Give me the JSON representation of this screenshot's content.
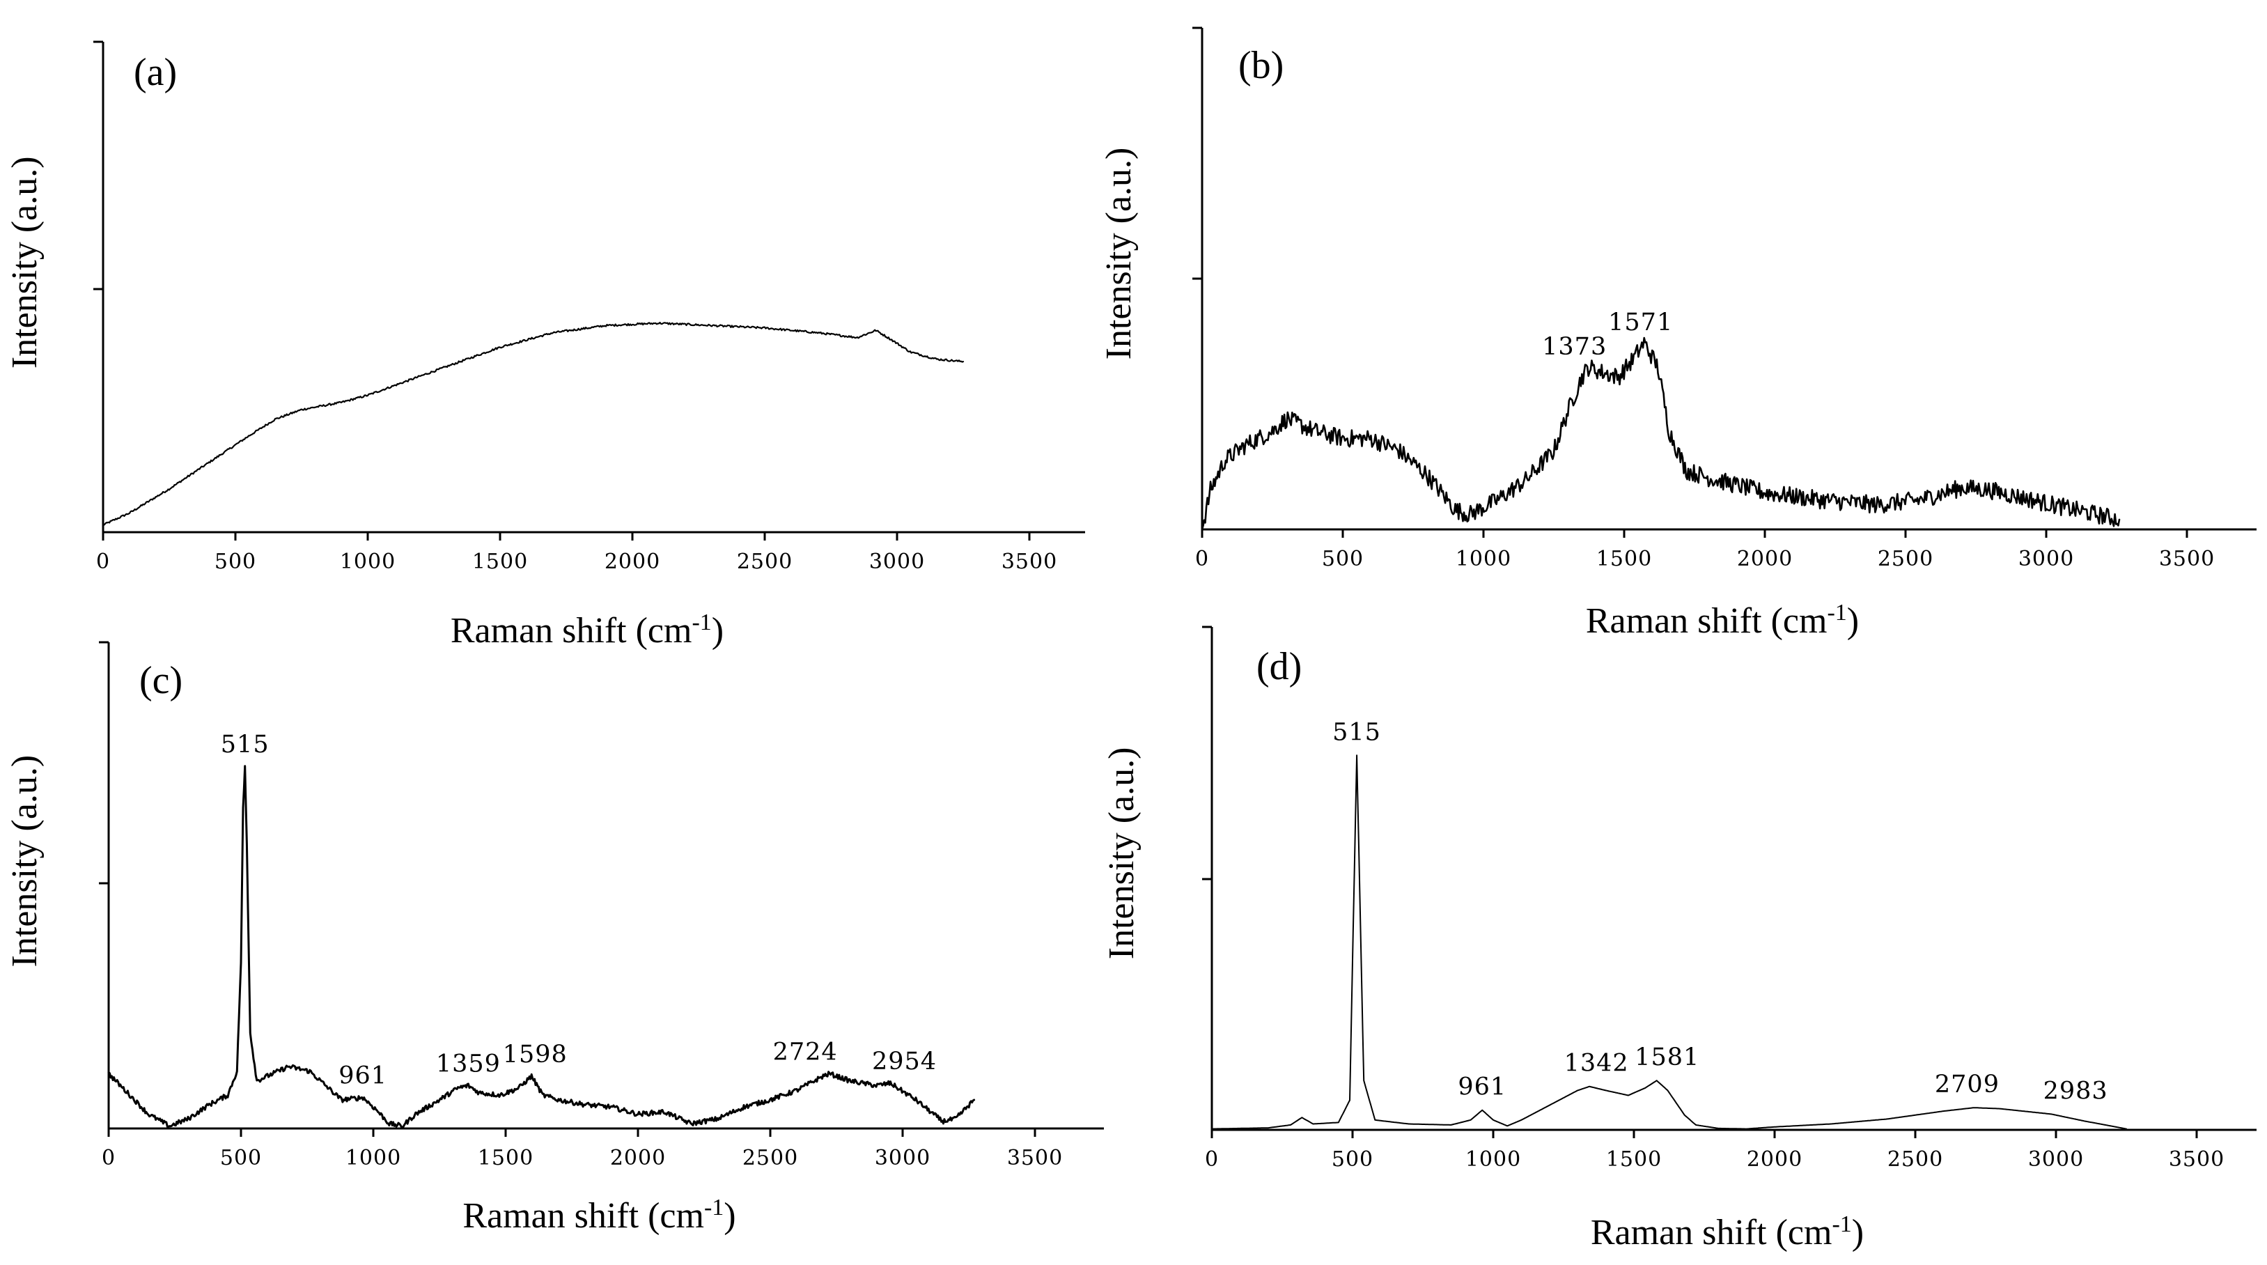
{
  "chart_data": [
    {
      "panel": "(a)",
      "type": "line",
      "title": "",
      "xlabel_main": "Raman shift (cm",
      "xlabel_sup": "-1",
      "xlabel_end": ")",
      "ylabel": "Intensity (a.u.)",
      "xlim": [
        0,
        3750
      ],
      "ylim": [
        0,
        1
      ],
      "xticks": [
        "0",
        "500",
        "1000",
        "1500",
        "2000",
        "2500",
        "3000",
        "3500"
      ],
      "noise": 0.002,
      "series": [
        {
          "name": "(a)",
          "points": [
            [
              0,
              0.015
            ],
            [
              100,
              0.04
            ],
            [
              250,
              0.09
            ],
            [
              400,
              0.145
            ],
            [
              550,
              0.2
            ],
            [
              650,
              0.235
            ],
            [
              750,
              0.255
            ],
            [
              900,
              0.27
            ],
            [
              1000,
              0.285
            ],
            [
              1100,
              0.305
            ],
            [
              1300,
              0.345
            ],
            [
              1500,
              0.385
            ],
            [
              1700,
              0.415
            ],
            [
              1900,
              0.43
            ],
            [
              2100,
              0.435
            ],
            [
              2300,
              0.43
            ],
            [
              2500,
              0.425
            ],
            [
              2700,
              0.415
            ],
            [
              2850,
              0.405
            ],
            [
              2920,
              0.42
            ],
            [
              2980,
              0.4
            ],
            [
              3050,
              0.375
            ],
            [
              3150,
              0.36
            ],
            [
              3250,
              0.355
            ]
          ]
        }
      ],
      "annotations": []
    },
    {
      "panel": "(b)",
      "type": "line",
      "title": "",
      "xlabel_main": "Raman shift (cm",
      "xlabel_sup": "-1",
      "xlabel_end": ")",
      "ylabel": "Intensity (a.u.)",
      "xlim": [
        0,
        3750
      ],
      "ylim": [
        0,
        1
      ],
      "xticks": [
        "0",
        "500",
        "1000",
        "1500",
        "2000",
        "2500",
        "3000",
        "3500"
      ],
      "noise": 0.018,
      "series": [
        {
          "name": "(b)",
          "points": [
            [
              0,
              0.0
            ],
            [
              30,
              0.08
            ],
            [
              80,
              0.14
            ],
            [
              150,
              0.17
            ],
            [
              250,
              0.2
            ],
            [
              300,
              0.225
            ],
            [
              400,
              0.2
            ],
            [
              500,
              0.185
            ],
            [
              600,
              0.185
            ],
            [
              700,
              0.16
            ],
            [
              800,
              0.11
            ],
            [
              900,
              0.04
            ],
            [
              950,
              0.03
            ],
            [
              1050,
              0.06
            ],
            [
              1150,
              0.1
            ],
            [
              1250,
              0.16
            ],
            [
              1300,
              0.24
            ],
            [
              1350,
              0.31
            ],
            [
              1373,
              0.33
            ],
            [
              1420,
              0.32
            ],
            [
              1480,
              0.31
            ],
            [
              1530,
              0.345
            ],
            [
              1571,
              0.38
            ],
            [
              1620,
              0.33
            ],
            [
              1660,
              0.2
            ],
            [
              1720,
              0.12
            ],
            [
              1800,
              0.105
            ],
            [
              1900,
              0.09
            ],
            [
              2000,
              0.075
            ],
            [
              2200,
              0.06
            ],
            [
              2400,
              0.05
            ],
            [
              2550,
              0.06
            ],
            [
              2700,
              0.085
            ],
            [
              2800,
              0.08
            ],
            [
              2950,
              0.06
            ],
            [
              3100,
              0.04
            ],
            [
              3260,
              0.02
            ]
          ]
        }
      ],
      "annotations": [
        {
          "label": "1373",
          "x": 1373,
          "y": 0.33
        },
        {
          "label": "1571",
          "x": 1571,
          "y": 0.38
        }
      ]
    },
    {
      "panel": "(c)",
      "type": "line",
      "title": "",
      "xlabel_main": "Raman shift (cm",
      "xlabel_sup": "-1",
      "xlabel_end": ")",
      "ylabel": "Intensity (a.u.)",
      "xlim": [
        0,
        3750
      ],
      "ylim": [
        0,
        1
      ],
      "xticks": [
        "0",
        "500",
        "1000",
        "1500",
        "2000",
        "2500",
        "3000",
        "3500"
      ],
      "noise": 0.005,
      "series": [
        {
          "name": "(c)",
          "points": [
            [
              0,
              0.115
            ],
            [
              80,
              0.07
            ],
            [
              150,
              0.03
            ],
            [
              230,
              0.005
            ],
            [
              300,
              0.02
            ],
            [
              380,
              0.05
            ],
            [
              450,
              0.07
            ],
            [
              485,
              0.12
            ],
            [
              500,
              0.35
            ],
            [
              508,
              0.67
            ],
            [
              515,
              0.76
            ],
            [
              522,
              0.6
            ],
            [
              535,
              0.2
            ],
            [
              560,
              0.1
            ],
            [
              600,
              0.11
            ],
            [
              680,
              0.13
            ],
            [
              760,
              0.12
            ],
            [
              820,
              0.09
            ],
            [
              880,
              0.06
            ],
            [
              961,
              0.065
            ],
            [
              1010,
              0.04
            ],
            [
              1060,
              0.01
            ],
            [
              1110,
              0.005
            ],
            [
              1160,
              0.03
            ],
            [
              1250,
              0.06
            ],
            [
              1320,
              0.085
            ],
            [
              1359,
              0.09
            ],
            [
              1400,
              0.075
            ],
            [
              1480,
              0.07
            ],
            [
              1550,
              0.085
            ],
            [
              1598,
              0.11
            ],
            [
              1640,
              0.07
            ],
            [
              1700,
              0.06
            ],
            [
              1800,
              0.05
            ],
            [
              1900,
              0.045
            ],
            [
              2000,
              0.03
            ],
            [
              2100,
              0.035
            ],
            [
              2200,
              0.01
            ],
            [
              2300,
              0.02
            ],
            [
              2400,
              0.045
            ],
            [
              2500,
              0.06
            ],
            [
              2600,
              0.08
            ],
            [
              2700,
              0.11
            ],
            [
              2724,
              0.115
            ],
            [
              2800,
              0.1
            ],
            [
              2900,
              0.09
            ],
            [
              2954,
              0.095
            ],
            [
              3050,
              0.06
            ],
            [
              3150,
              0.015
            ],
            [
              3200,
              0.02
            ],
            [
              3270,
              0.06
            ]
          ]
        }
      ],
      "annotations": [
        {
          "label": "515",
          "x": 515,
          "y": 0.76
        },
        {
          "label": "961",
          "x": 961,
          "y": 0.065
        },
        {
          "label": "1359",
          "x": 1359,
          "y": 0.09
        },
        {
          "label": "1598",
          "x": 1598,
          "y": 0.11
        },
        {
          "label": "2724",
          "x": 2724,
          "y": 0.115
        },
        {
          "label": "2954",
          "x": 2954,
          "y": 0.095
        }
      ]
    },
    {
      "panel": "(d)",
      "type": "line",
      "title": "",
      "xlabel_main": "Raman shift (cm",
      "xlabel_sup": "-1",
      "xlabel_end": ")",
      "ylabel": "Intensity (a.u.)",
      "xlim": [
        0,
        3750
      ],
      "ylim": [
        0,
        1
      ],
      "xticks": [
        "0",
        "500",
        "1000",
        "1500",
        "2000",
        "2500",
        "3000",
        "3500"
      ],
      "noise": 0.0,
      "series": [
        {
          "name": "(d)",
          "points": [
            [
              0,
              0.002
            ],
            [
              200,
              0.004
            ],
            [
              280,
              0.01
            ],
            [
              320,
              0.025
            ],
            [
              360,
              0.012
            ],
            [
              450,
              0.015
            ],
            [
              490,
              0.06
            ],
            [
              502,
              0.4
            ],
            [
              515,
              0.76
            ],
            [
              525,
              0.5
            ],
            [
              540,
              0.1
            ],
            [
              580,
              0.02
            ],
            [
              700,
              0.012
            ],
            [
              850,
              0.01
            ],
            [
              920,
              0.02
            ],
            [
              961,
              0.04
            ],
            [
              1000,
              0.02
            ],
            [
              1050,
              0.008
            ],
            [
              1100,
              0.02
            ],
            [
              1200,
              0.05
            ],
            [
              1300,
              0.08
            ],
            [
              1342,
              0.088
            ],
            [
              1400,
              0.08
            ],
            [
              1480,
              0.07
            ],
            [
              1540,
              0.085
            ],
            [
              1581,
              0.1
            ],
            [
              1620,
              0.08
            ],
            [
              1680,
              0.03
            ],
            [
              1720,
              0.01
            ],
            [
              1800,
              0.003
            ],
            [
              1900,
              0.002
            ],
            [
              2000,
              0.006
            ],
            [
              2200,
              0.012
            ],
            [
              2400,
              0.022
            ],
            [
              2600,
              0.038
            ],
            [
              2709,
              0.045
            ],
            [
              2800,
              0.043
            ],
            [
              2983,
              0.032
            ],
            [
              3100,
              0.018
            ],
            [
              3250,
              0.002
            ]
          ]
        }
      ],
      "annotations": [
        {
          "label": "515",
          "x": 515,
          "y": 0.76
        },
        {
          "label": "961",
          "x": 961,
          "y": 0.04
        },
        {
          "label": "1342",
          "x": 1342,
          "y": 0.088
        },
        {
          "label": "1581",
          "x": 1581,
          "y": 0.1
        },
        {
          "label": "2709",
          "x": 2709,
          "y": 0.045
        },
        {
          "label": "2983",
          "x": 2983,
          "y": 0.032
        }
      ]
    }
  ]
}
